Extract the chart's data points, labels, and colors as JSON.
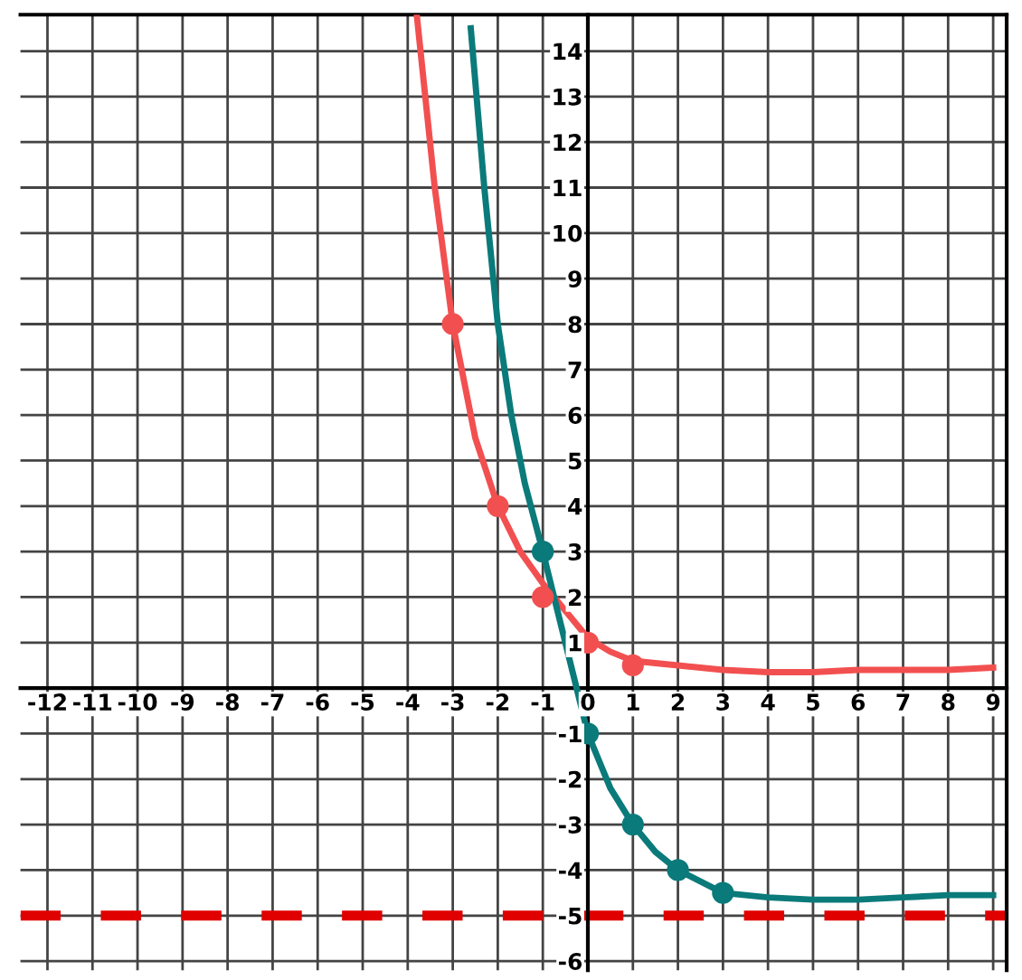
{
  "chart_data": {
    "type": "line",
    "xlim": [
      -12.6,
      9.3
    ],
    "ylim": [
      -6.2,
      14.8
    ],
    "xticks": [
      -12,
      -11,
      -10,
      -9,
      -8,
      -7,
      -6,
      -5,
      -4,
      -3,
      -2,
      -1,
      0,
      1,
      2,
      3,
      4,
      5,
      6,
      7,
      8,
      9
    ],
    "yticks": [
      -6,
      -5,
      -4,
      -3,
      -2,
      -1,
      1,
      2,
      3,
      4,
      5,
      6,
      7,
      8,
      9,
      10,
      11,
      12,
      13,
      14
    ],
    "grid": true,
    "series": [
      {
        "color": "#f25050",
        "x": [
          -3.8,
          -3.4,
          -3,
          -2.5,
          -2,
          -1.5,
          -1,
          -0.5,
          0,
          0.5,
          1,
          2,
          3,
          4,
          5,
          6,
          7,
          8,
          9
        ],
        "values": [
          14.8,
          11,
          8,
          5.5,
          4,
          3,
          2.3,
          1.7,
          1.1,
          0.8,
          0.6,
          0.5,
          0.4,
          0.35,
          0.35,
          0.4,
          0.4,
          0.4,
          0.45
        ]
      },
      {
        "type": "scatter",
        "marker": "circle",
        "color": "#f25050",
        "x": [
          -3,
          -2,
          -1,
          0,
          1
        ],
        "values": [
          8,
          4,
          2,
          1,
          0.5
        ]
      },
      {
        "color": "#0b7a7a",
        "x": [
          -2.6,
          -2.3,
          -2,
          -1.7,
          -1.4,
          -1,
          -0.5,
          0,
          0.5,
          1,
          1.5,
          2,
          3,
          4,
          5,
          6,
          7,
          8,
          9
        ],
        "values": [
          14.5,
          11,
          8,
          6,
          4.5,
          3,
          1,
          -1,
          -2.2,
          -3,
          -3.6,
          -4,
          -4.5,
          -4.6,
          -4.65,
          -4.65,
          -4.6,
          -4.55,
          -4.55
        ]
      },
      {
        "type": "scatter",
        "marker": "circle",
        "color": "#0b7a7a",
        "x": [
          -1,
          0,
          1,
          2,
          3
        ],
        "values": [
          3,
          -1,
          -3,
          -4,
          -4.5
        ]
      }
    ],
    "ref_lines": [
      {
        "axis": "y",
        "value": -5,
        "color": "#e00000",
        "line_style": "dashed"
      }
    ]
  }
}
